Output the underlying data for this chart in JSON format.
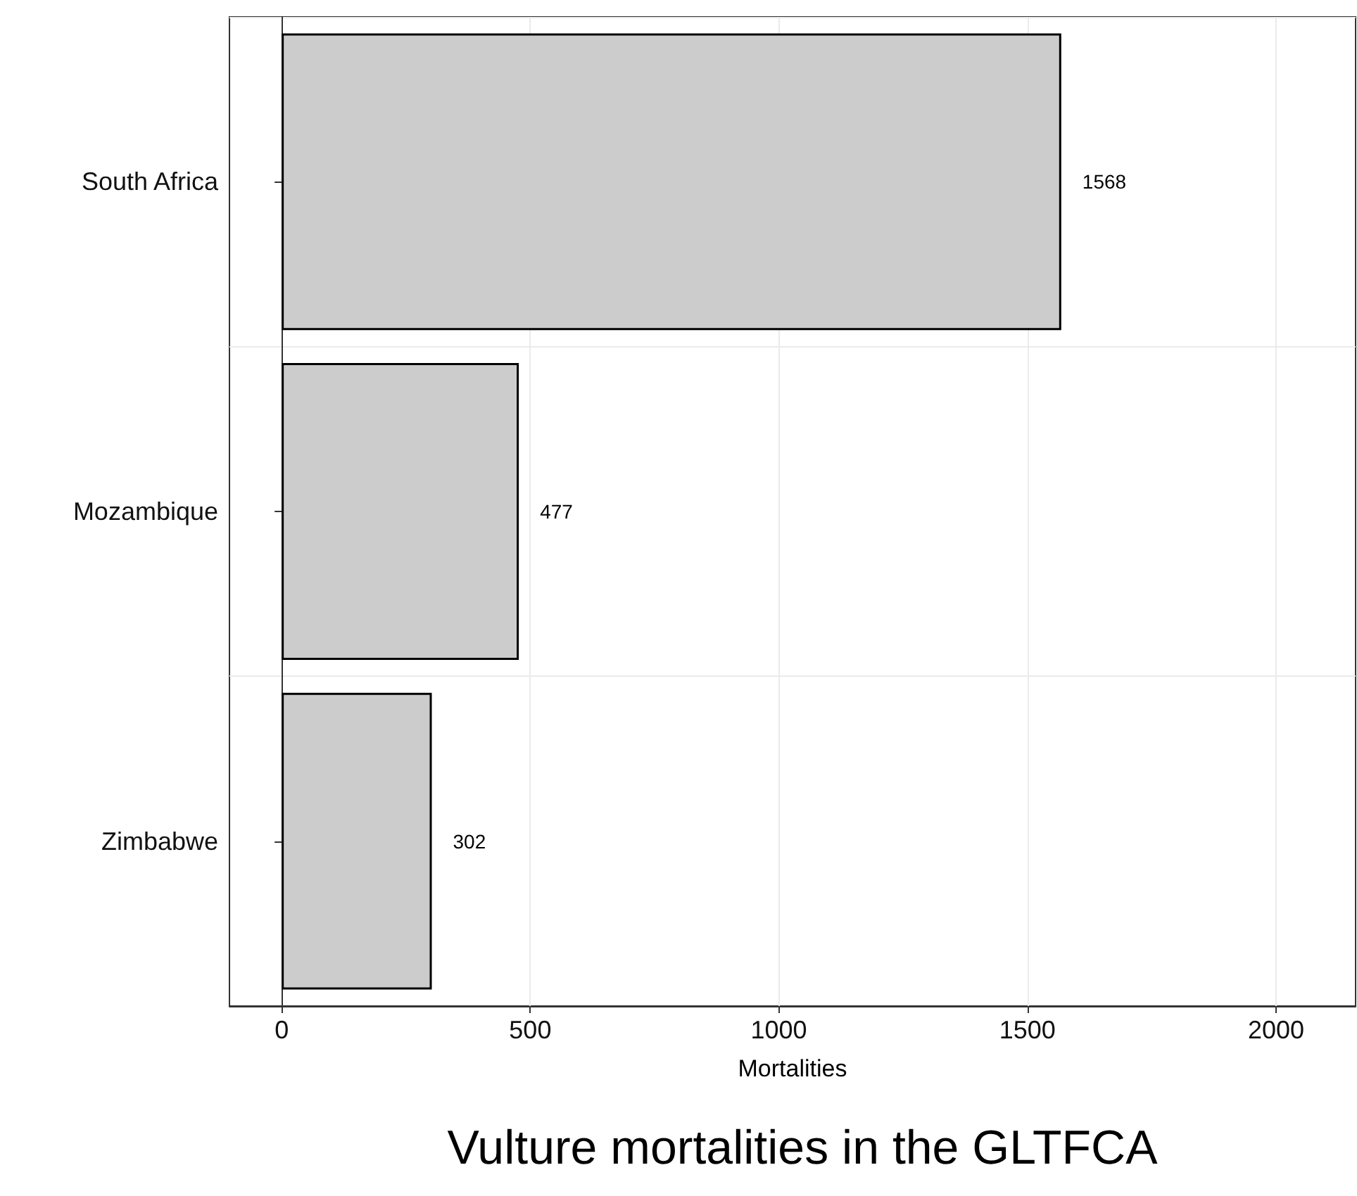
{
  "chart_data": {
    "type": "bar",
    "orientation": "horizontal",
    "title": "Vulture mortalities in the GLTFCA",
    "xlabel": "Mortalities",
    "categories": [
      "South Africa",
      "Mozambique",
      "Zimbabwe"
    ],
    "values": [
      1568,
      477,
      302
    ],
    "color": "#cccccc",
    "xlim": [
      -105,
      2160
    ],
    "xticks": [
      0,
      500,
      1000,
      1500,
      2000
    ],
    "grid": true,
    "data_labels": true
  }
}
